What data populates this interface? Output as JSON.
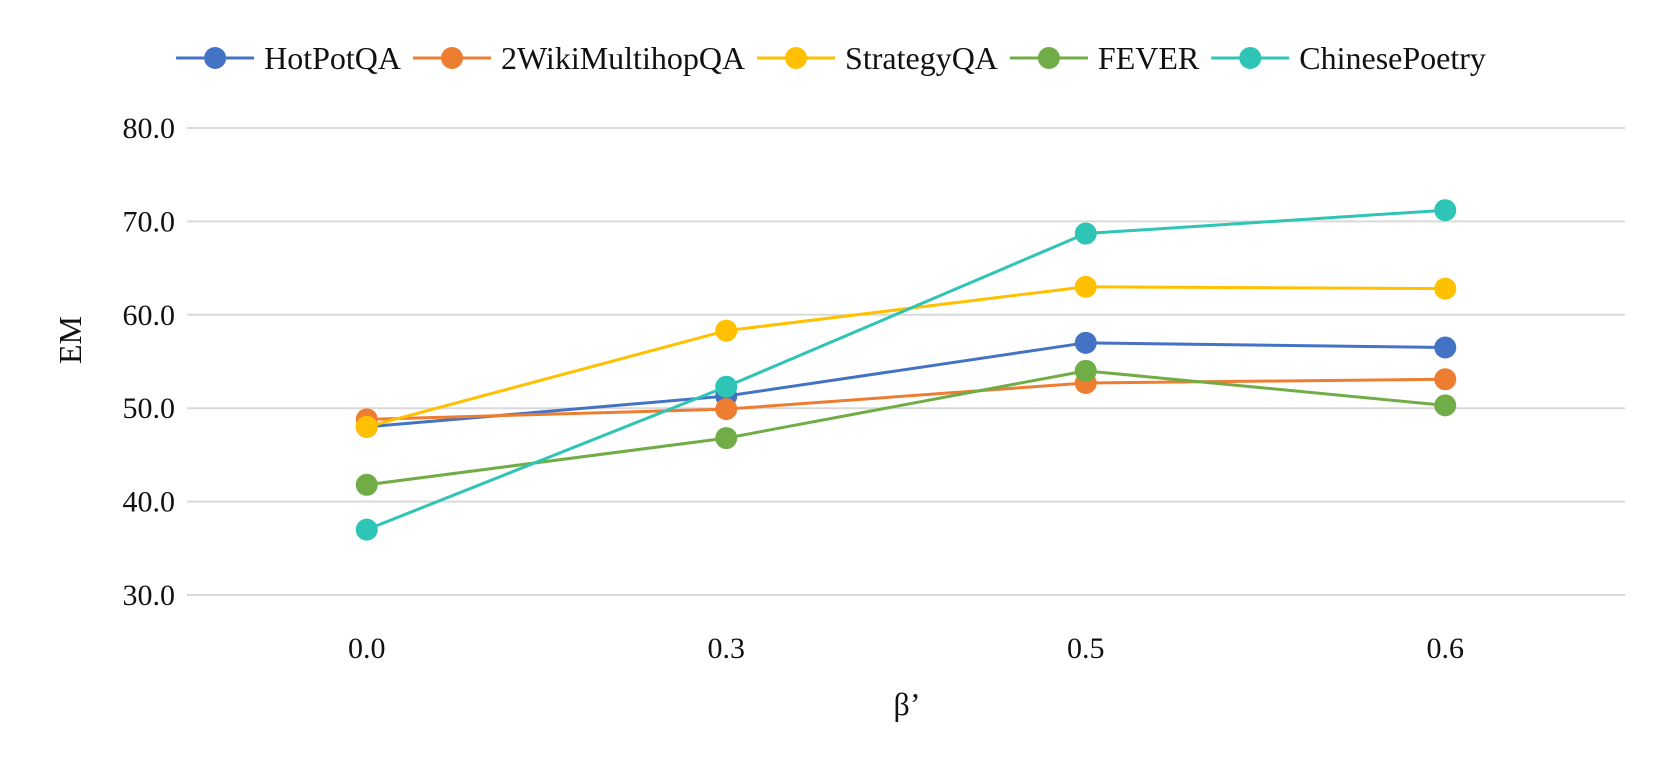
{
  "chart_data": {
    "type": "line",
    "title": "",
    "xlabel": "β’",
    "ylabel": "EM",
    "categories": [
      "0.0",
      "0.3",
      "0.5",
      "0.6"
    ],
    "ylim": [
      30,
      80
    ],
    "yticks": [
      "30.0",
      "40.0",
      "50.0",
      "60.0",
      "70.0",
      "80.0"
    ],
    "grid": true,
    "legend_position": "top",
    "series": [
      {
        "name": "HotPotQA",
        "color": "#4472C4",
        "values": [
          48.0,
          51.3,
          57.0,
          56.5
        ]
      },
      {
        "name": "2WikiMultihopQA",
        "color": "#ED7D31",
        "values": [
          48.8,
          49.9,
          52.7,
          53.1
        ]
      },
      {
        "name": "StrategyQA",
        "color": "#FFC000",
        "values": [
          48.0,
          58.3,
          63.0,
          62.8
        ]
      },
      {
        "name": "FEVER",
        "color": "#70AD47",
        "values": [
          41.8,
          46.8,
          54.0,
          50.3
        ]
      },
      {
        "name": "ChinesePoetry",
        "color": "#2EC4B6",
        "values": [
          37.0,
          52.3,
          68.7,
          71.2
        ]
      }
    ]
  }
}
